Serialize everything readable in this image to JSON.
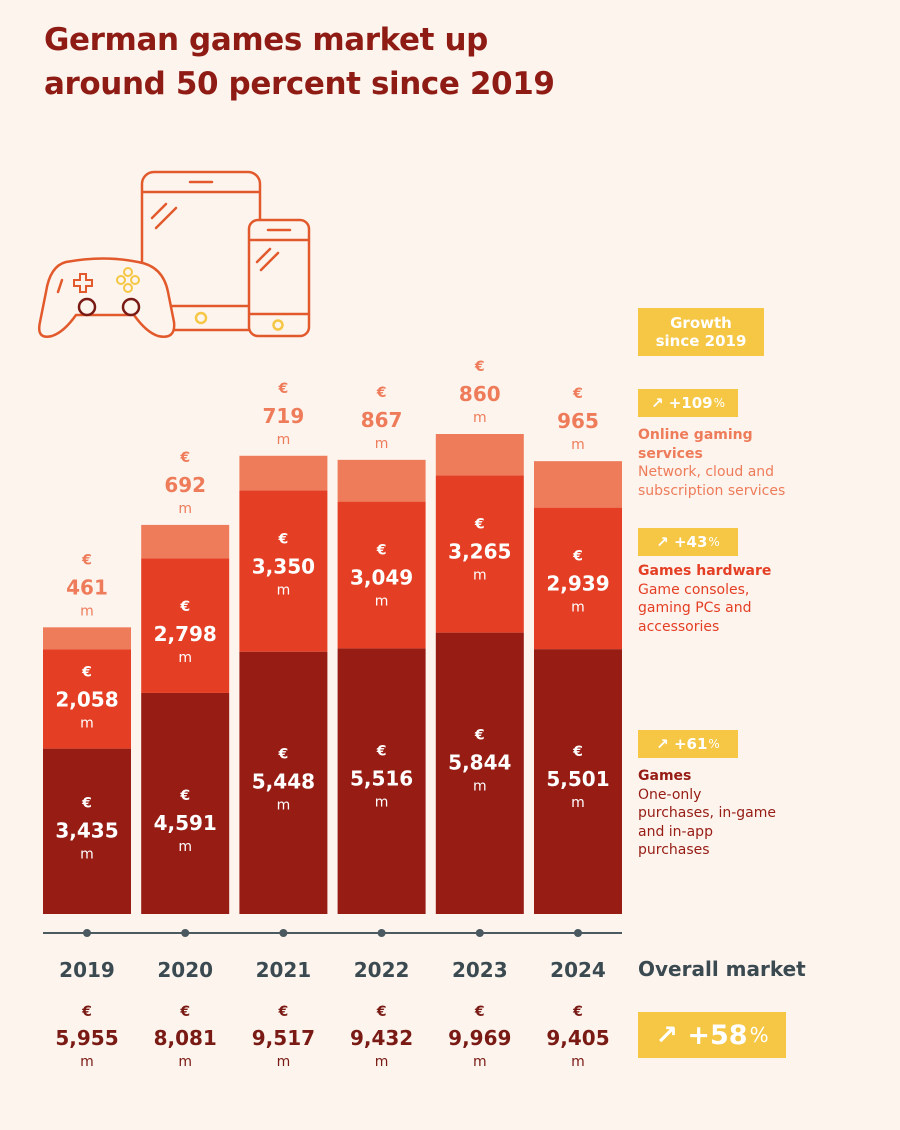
{
  "title": {
    "line1": "German games market up",
    "line2": "around 50 percent since 2019"
  },
  "colors": {
    "games": "#961c14",
    "hardware": "#e43f24",
    "online": "#ee7c5a",
    "gold": "#f5c745",
    "background": "#fdf4ee",
    "axis": "#4a5a60"
  },
  "legend": {
    "growth_header": [
      "Growth",
      "since 2019"
    ],
    "items": [
      {
        "key": "online",
        "growth": "↗ +109",
        "unit": "%",
        "name": "Online gaming services",
        "desc": "Network, cloud and subscription services"
      },
      {
        "key": "hardware",
        "growth": "↗ +43",
        "unit": "%",
        "name": "Games hardware",
        "desc": "Game consoles, gaming PCs and accessories"
      },
      {
        "key": "games",
        "growth": "↗ +61",
        "unit": "%",
        "name": "Games",
        "desc": "One-only purchases, in-game and in-app purchases"
      }
    ],
    "overall_label": "Overall market",
    "overall_growth": "↗ +58",
    "overall_unit": "%"
  },
  "chart_data": {
    "type": "bar",
    "stacked": true,
    "title": "German games market up around 50 percent since 2019",
    "unit_prefix": "€",
    "unit_suffix": "m",
    "categories": [
      "2019",
      "2020",
      "2021",
      "2022",
      "2023",
      "2024"
    ],
    "series": [
      {
        "name": "Games",
        "key": "games",
        "values": [
          3435,
          4591,
          5448,
          5516,
          5844,
          5501
        ],
        "labels": [
          "3,435",
          "4,591",
          "5,448",
          "5,516",
          "5,844",
          "5,501"
        ]
      },
      {
        "name": "Games hardware",
        "key": "hardware",
        "values": [
          2058,
          2798,
          3350,
          3049,
          3265,
          2939
        ],
        "labels": [
          "2,058",
          "2,798",
          "3,350",
          "3,049",
          "3,265",
          "2,939"
        ]
      },
      {
        "name": "Online gaming services",
        "key": "online",
        "values": [
          461,
          692,
          719,
          867,
          860,
          965
        ],
        "labels": [
          "461",
          "692",
          "719",
          "867",
          "860",
          "965"
        ]
      }
    ],
    "totals": [
      5955,
      8081,
      9517,
      9432,
      9969,
      9405
    ],
    "total_labels": [
      "5,955",
      "8,081",
      "9,517",
      "9,432",
      "9,969",
      "9,405"
    ],
    "ylim": [
      0,
      9969
    ]
  }
}
